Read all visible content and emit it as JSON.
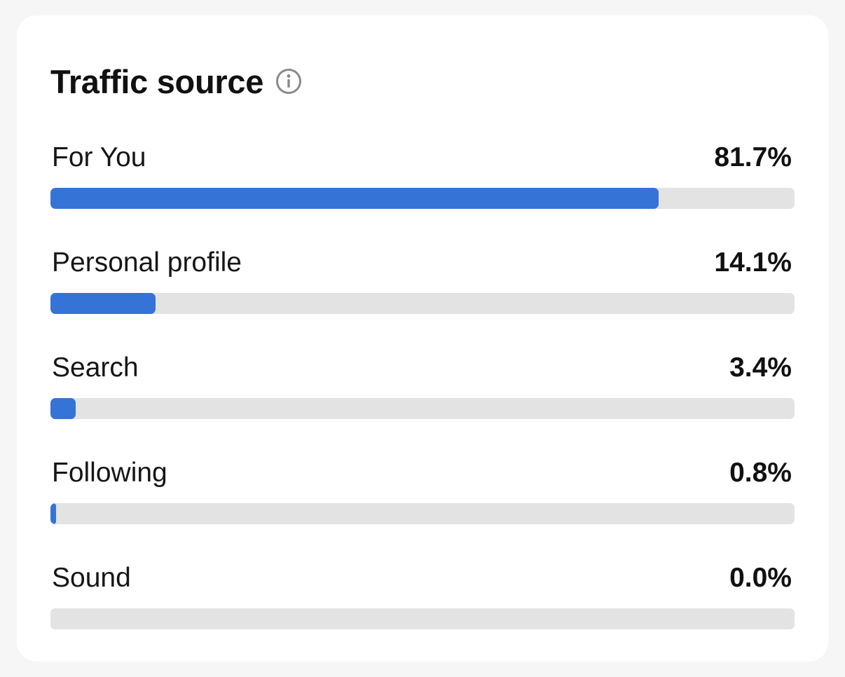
{
  "card": {
    "title": "Traffic source",
    "info_icon": "info-circle-icon"
  },
  "colors": {
    "bar_fill": "#3574d6",
    "bar_track": "#e3e3e3",
    "card_background": "#ffffff",
    "page_background": "#f6f6f6"
  },
  "sources": [
    {
      "label": "For You",
      "value_text": "81.7%",
      "percent": 81.7
    },
    {
      "label": "Personal profile",
      "value_text": "14.1%",
      "percent": 14.1
    },
    {
      "label": "Search",
      "value_text": "3.4%",
      "percent": 3.4
    },
    {
      "label": "Following",
      "value_text": "0.8%",
      "percent": 0.8
    },
    {
      "label": "Sound",
      "value_text": "0.0%",
      "percent": 0.0
    }
  ]
}
